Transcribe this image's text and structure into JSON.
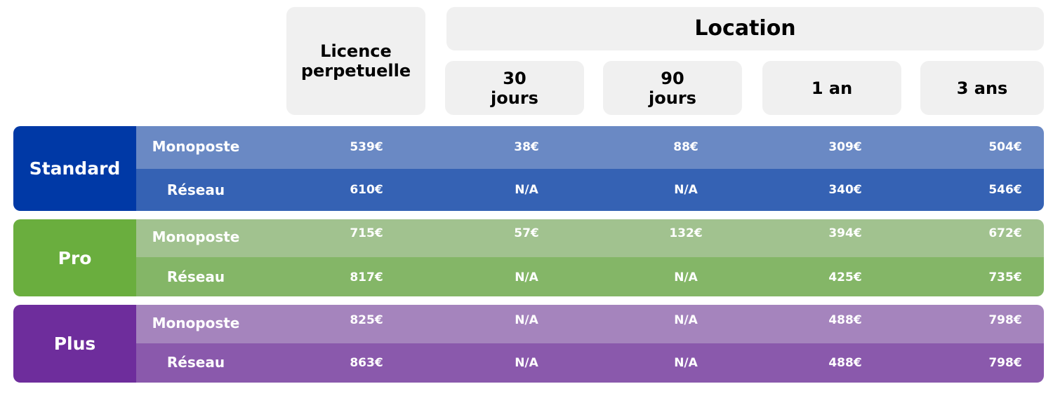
{
  "header": {
    "licence": "Licence\nperpetuelle",
    "location": "Location",
    "durations": [
      "30\njours",
      "90\njours",
      "1 an",
      "3 ans"
    ]
  },
  "colors": {
    "standard_tier": "#0039a6",
    "standard_row1": "#6a89c4",
    "standard_row2": "#3562b4",
    "pro_tier": "#6aae3e",
    "pro_row1": "#a1c28f",
    "pro_row2": "#84b667",
    "plus_tier": "#6e2d9c",
    "plus_row1": "#a584bd",
    "plus_row2": "#8a59ac",
    "header_bg": "#f0f0f0"
  },
  "groups": [
    {
      "name": "Standard",
      "rows": [
        {
          "label": "Monoposte",
          "values": [
            "539€",
            "38€",
            "88€",
            "309€",
            "504€"
          ]
        },
        {
          "label": "Réseau",
          "values": [
            "610€",
            "N/A",
            "N/A",
            "340€",
            "546€"
          ]
        }
      ]
    },
    {
      "name": "Pro",
      "rows": [
        {
          "label": "Monoposte",
          "values": [
            "715€",
            "57€",
            "132€",
            "394€",
            "672€"
          ]
        },
        {
          "label": "Réseau",
          "values": [
            "817€",
            "N/A",
            "N/A",
            "425€",
            "735€"
          ]
        }
      ]
    },
    {
      "name": "Plus",
      "rows": [
        {
          "label": "Monoposte",
          "values": [
            "825€",
            "N/A",
            "N/A",
            "488€",
            "798€"
          ]
        },
        {
          "label": "Réseau",
          "values": [
            "863€",
            "N/A",
            "N/A",
            "488€",
            "798€"
          ]
        }
      ]
    }
  ]
}
